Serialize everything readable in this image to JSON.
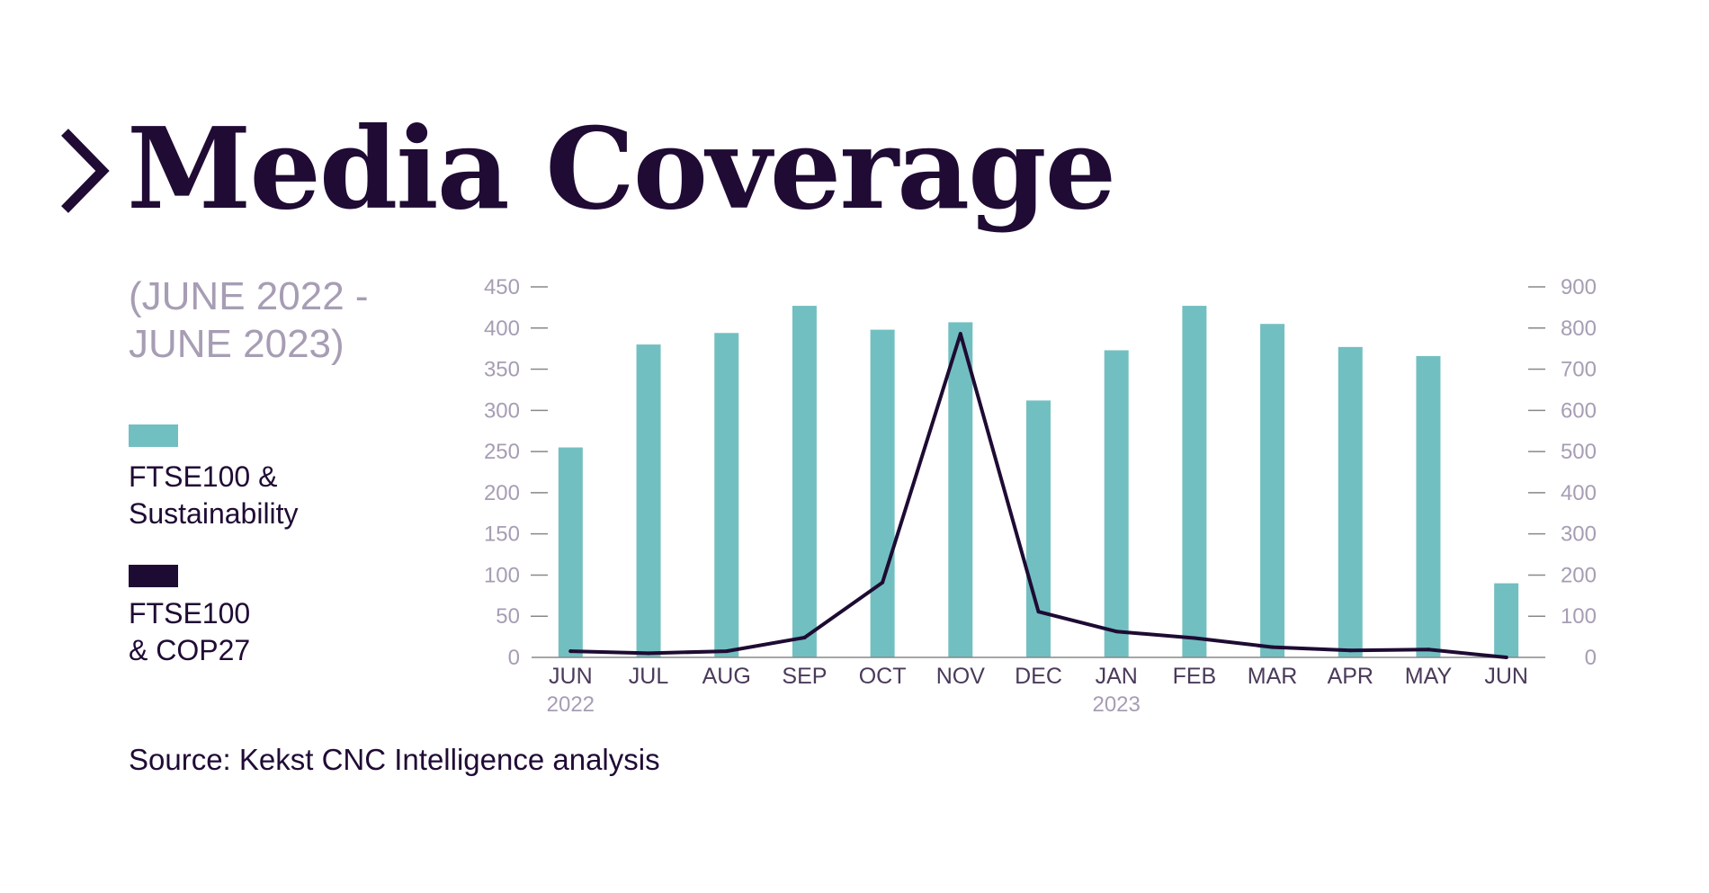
{
  "header": {
    "title": "Media Coverage",
    "period_line1": "(JUNE 2022 -",
    "period_line2": "JUNE 2023)"
  },
  "legend": {
    "bar_label_line1": "FTSE100 &",
    "bar_label_line2": "Sustainability",
    "line_label_line1": "FTSE100",
    "line_label_line2": "& COP27"
  },
  "source": "Source: Kekst CNC Intelligence analysis",
  "colors": {
    "bar": "#72bfc1",
    "line": "#1e0b33",
    "title": "#200b35",
    "muted": "#a79db4",
    "axis": "#888888"
  },
  "chart_data": {
    "type": "bar",
    "categories": [
      "JUN",
      "JUL",
      "AUG",
      "SEP",
      "OCT",
      "NOV",
      "DEC",
      "JAN",
      "FEB",
      "MAR",
      "APR",
      "MAY",
      "JUN"
    ],
    "year_labels": [
      {
        "index": 0,
        "label": "2022"
      },
      {
        "index": 7,
        "label": "2023"
      }
    ],
    "left_axis": {
      "ylim": [
        0,
        450
      ],
      "ticks": [
        "0",
        "50",
        "100",
        "150",
        "200",
        "250",
        "300",
        "350",
        "400",
        "450"
      ]
    },
    "right_axis": {
      "ylim": [
        0,
        900
      ],
      "ticks": [
        "0",
        "100",
        "200",
        "300",
        "400",
        "500",
        "600",
        "700",
        "800",
        "900"
      ]
    },
    "series": [
      {
        "name": "FTSE100 & Sustainability",
        "type": "bar",
        "axis": "left",
        "values": [
          255,
          380,
          394,
          427,
          398,
          407,
          312,
          373,
          427,
          405,
          377,
          366,
          90
        ]
      },
      {
        "name": "FTSE100 & COP27",
        "type": "line",
        "axis": "right",
        "values": [
          15,
          10,
          15,
          48,
          182,
          786,
          111,
          63,
          47,
          25,
          17,
          19,
          0
        ]
      }
    ],
    "grid": false,
    "legend_position": "left"
  }
}
